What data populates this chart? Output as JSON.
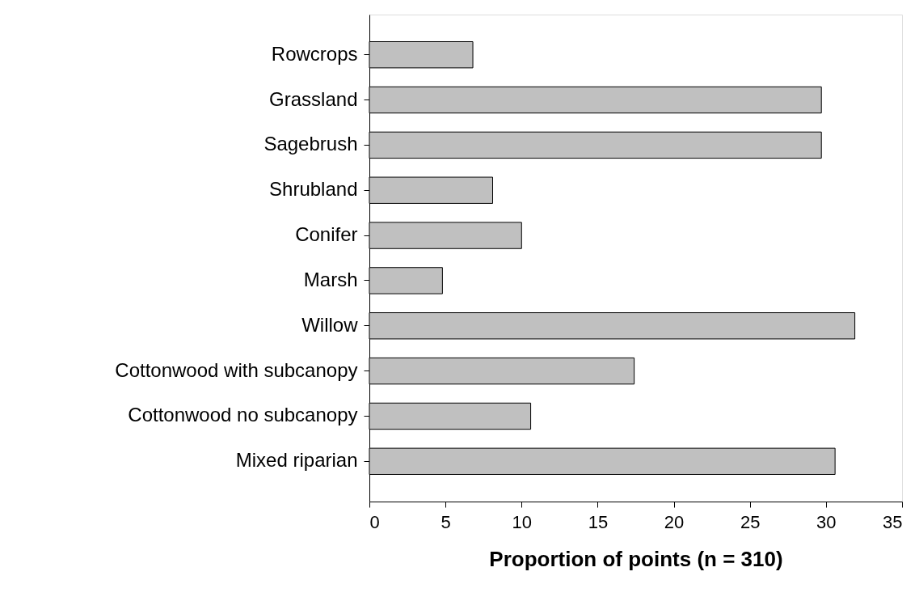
{
  "chart_data": {
    "type": "bar",
    "orientation": "horizontal",
    "xlabel": "Proportion of points (n = 310)",
    "categories": [
      "Rowcrops",
      "Grassland",
      "Sagebrush",
      "Shrubland",
      "Conifer",
      "Marsh",
      "Willow",
      "Cottonwood with subcanopy",
      "Cottonwood no subcanopy",
      "Mixed riparian"
    ],
    "values": [
      6.8,
      29.7,
      29.7,
      8.1,
      10.0,
      4.8,
      31.9,
      17.4,
      10.6,
      30.6
    ],
    "color": "#c0c0c0",
    "xlim": [
      0,
      35
    ],
    "xticks": [
      0,
      5,
      10,
      15,
      20,
      25,
      30,
      35
    ],
    "grid": false
  }
}
